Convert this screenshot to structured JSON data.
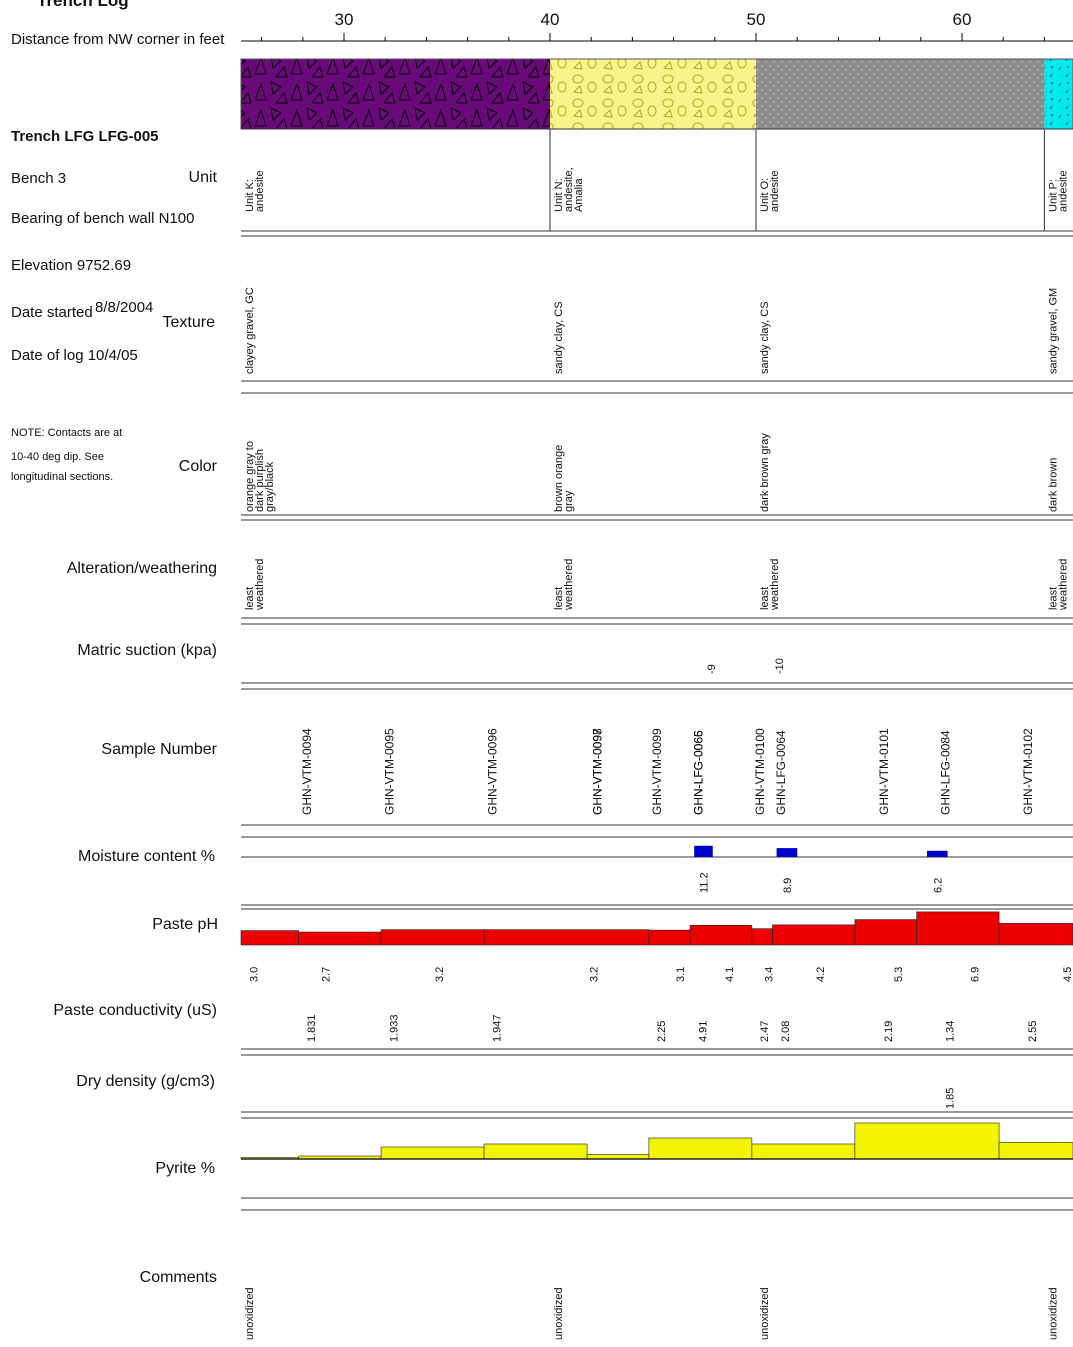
{
  "header": {
    "title": "Trench Log",
    "distance_label": "Distance from NW corner in feet",
    "trench": "Trench LFG LFG-005",
    "bench": "Bench  3",
    "bearing": "Bearing of bench wall N100",
    "elevation": "Elevation 9752.69",
    "date_started_label": "Date started",
    "date_started_value": "8/8/2004",
    "date_of_log": "Date of log 10/4/05",
    "note_lines": [
      "NOTE: Contacts are at",
      "10-40 deg dip. See",
      "longitudinal sections."
    ]
  },
  "row_labels": {
    "unit": "Unit",
    "texture": "Texture",
    "color": "Color",
    "alteration": "Alteration/weathering",
    "matric": "Matric suction (kpa)",
    "sample": "Sample Number",
    "moisture": "Moisture content %",
    "ph": "Paste pH",
    "conductivity": "Paste conductivity (uS)",
    "density": "Dry density (g/cm3)",
    "pyrite": "Pyrite %",
    "comments": "Comments"
  },
  "colors": {
    "unit_k": "#6a0a7a",
    "unit_n": "#f8f48c",
    "unit_o": "#8c8c8c",
    "unit_p": "#00e8f0",
    "moisture": "#0000cc",
    "ph": "#ee0000",
    "pyrite": "#f4f400"
  },
  "chart_data": {
    "type": "table",
    "x_axis": {
      "ticks": [
        30,
        40,
        50,
        60
      ],
      "range": [
        25,
        65.5
      ]
    },
    "units": [
      {
        "name": "K",
        "start": 25,
        "end": 40,
        "pattern": "triangles",
        "label": [
          "Unit K:",
          "andesite"
        ],
        "texture": "clayey gravel, GC",
        "color_desc": [
          "orange gray to",
          "dark purplish",
          "gray/black"
        ],
        "alteration": [
          "least",
          "weathered"
        ],
        "comment": "unoxidized"
      },
      {
        "name": "N",
        "start": 40,
        "end": 50,
        "pattern": "circles",
        "label": [
          "Unit N:",
          "andesite,",
          "Amalia"
        ],
        "texture": "sandy clay, CS",
        "color_desc": [
          "brown orange",
          "gray"
        ],
        "alteration": [
          "least",
          "weathered"
        ],
        "comment": "unoxidized"
      },
      {
        "name": "O",
        "start": 50,
        "end": 64,
        "pattern": "dots",
        "label": [
          "Unit O:",
          "andesite"
        ],
        "texture": "sandy clay, CS",
        "color_desc": [
          "dark brown gray"
        ],
        "alteration": [
          "least",
          "weathered"
        ],
        "comment": "unoxidized"
      },
      {
        "name": "P",
        "start": 64,
        "end": 65.5,
        "pattern": "dashes",
        "label": [
          "Unit P:",
          "andesite"
        ],
        "texture": "sandy gravel, GM",
        "color_desc": [
          "dark brown"
        ],
        "alteration": [
          "least",
          "weathered"
        ],
        "comment": "unoxidized"
      }
    ],
    "matric_suction": [
      {
        "x": 48.0,
        "value": "-9"
      },
      {
        "x": 51.3,
        "value": "-10"
      }
    ],
    "samples": [
      {
        "x": 28.4,
        "id": "GHN-VTM-0094"
      },
      {
        "x": 32.4,
        "id": "GHN-VTM-0095"
      },
      {
        "x": 37.4,
        "id": "GHN-VTM-0096"
      },
      {
        "x": 42.5,
        "id": "GHN-VTM-0098"
      },
      {
        "x": 42.5,
        "id": "GHN-VTM-0097"
      },
      {
        "x": 45.4,
        "id": "GHN-VTM-0099"
      },
      {
        "x": 47.4,
        "id": "GHN-LFG-0066"
      },
      {
        "x": 47.4,
        "id": "GHN-LFG-0065"
      },
      {
        "x": 50.4,
        "id": "GHN-VTM-0100"
      },
      {
        "x": 51.4,
        "id": "GHN-LFG-0064"
      },
      {
        "x": 56.4,
        "id": "GHN-VTM-0101"
      },
      {
        "x": 59.4,
        "id": "GHN-LFG-0084"
      },
      {
        "x": 63.4,
        "id": "GHN-VTM-0102"
      }
    ],
    "moisture": [
      {
        "start": 47.0,
        "end": 47.9,
        "value": 11.2
      },
      {
        "start": 51.0,
        "end": 52.0,
        "value": 8.9
      },
      {
        "start": 58.3,
        "end": 59.3,
        "value": 6.2
      }
    ],
    "paste_ph": [
      {
        "start": 25.0,
        "end": 27.8,
        "value": 3.0
      },
      {
        "start": 27.8,
        "end": 31.8,
        "value": 2.7
      },
      {
        "start": 31.8,
        "end": 36.8,
        "value": 3.2
      },
      {
        "start": 36.8,
        "end": 44.8,
        "value": 3.2
      },
      {
        "start": 44.8,
        "end": 46.8,
        "value": 3.1
      },
      {
        "start": 46.8,
        "end": 49.8,
        "value": 4.1
      },
      {
        "start": 49.8,
        "end": 50.8,
        "value": 3.4
      },
      {
        "start": 50.8,
        "end": 54.8,
        "value": 4.2
      },
      {
        "start": 54.8,
        "end": 57.8,
        "value": 5.3
      },
      {
        "start": 57.8,
        "end": 61.8,
        "value": 6.9
      },
      {
        "start": 61.8,
        "end": 65.5,
        "value": 4.5
      }
    ],
    "paste_conductivity": [
      {
        "x": 28.4,
        "value": "1.831"
      },
      {
        "x": 32.4,
        "value": "1.933"
      },
      {
        "x": 37.4,
        "value": "1.947"
      },
      {
        "x": 45.4,
        "value": "2.25"
      },
      {
        "x": 47.4,
        "value": "4.91"
      },
      {
        "x": 50.4,
        "value": "2.47"
      },
      {
        "x": 51.4,
        "value": "2.08"
      },
      {
        "x": 56.4,
        "value": "2.19"
      },
      {
        "x": 59.4,
        "value": "1.34"
      },
      {
        "x": 63.4,
        "value": "2.55"
      }
    ],
    "dry_density": [
      {
        "x": 59.4,
        "value": "1.85"
      }
    ],
    "pyrite": [
      {
        "start": 25.0,
        "end": 27.8,
        "value": 0.1
      },
      {
        "start": 27.8,
        "end": 31.8,
        "value": 0.2
      },
      {
        "start": 31.8,
        "end": 36.8,
        "value": 0.8
      },
      {
        "start": 36.8,
        "end": 41.8,
        "value": 1.0
      },
      {
        "start": 41.8,
        "end": 44.8,
        "value": 0.3
      },
      {
        "start": 44.8,
        "end": 49.8,
        "value": 1.4
      },
      {
        "start": 49.8,
        "end": 54.8,
        "value": 1.0
      },
      {
        "start": 54.8,
        "end": 61.8,
        "value": 2.4
      },
      {
        "start": 61.8,
        "end": 65.5,
        "value": 1.1
      }
    ]
  }
}
